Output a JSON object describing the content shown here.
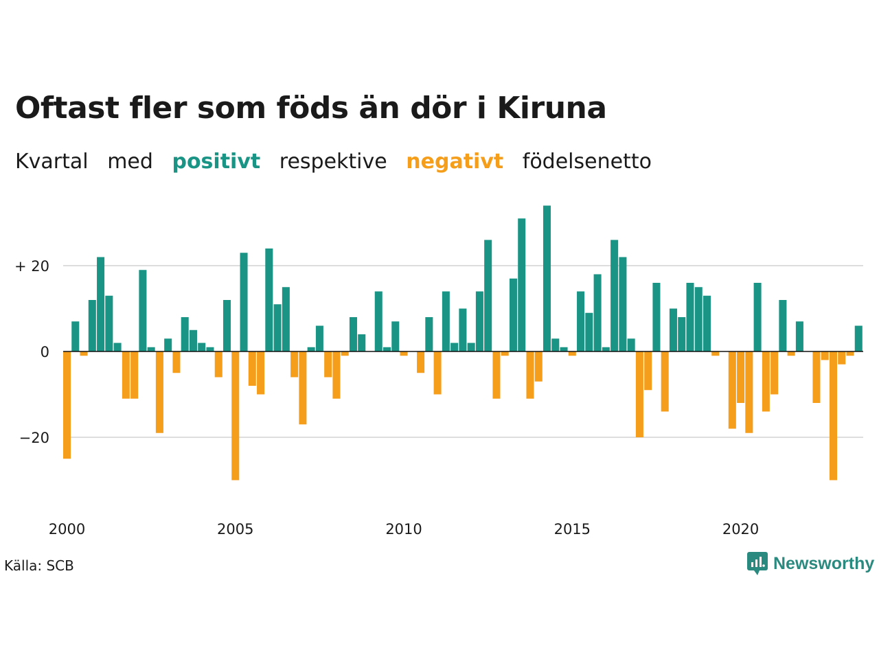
{
  "title": "Oftast fler som föds än dör i Kiruna",
  "subtitle": {
    "w1": "Kvartal",
    "w2": "med",
    "positive": "positivt",
    "w3": "respektive",
    "negative": "negativt",
    "w4": "födelsenetto"
  },
  "source": "Källa: SCB",
  "brand": "Newsworthy",
  "colors": {
    "positive": "#1a9485",
    "negative": "#f59e1c",
    "text": "#1a1a1a",
    "grid": "#dddddd",
    "brand": "#2b8a7f"
  },
  "chart_data": {
    "type": "bar",
    "title": "Oftast fler som föds än dör i Kiruna",
    "xlabel": "",
    "ylabel": "",
    "ylim": [
      -35,
      35
    ],
    "grid": true,
    "yticks": [
      {
        "value": 20,
        "label": "+ 20"
      },
      {
        "value": 0,
        "label": "0"
      },
      {
        "value": -20,
        "label": "−20"
      }
    ],
    "xticks": [
      "2000",
      "2005",
      "2010",
      "2015",
      "2020"
    ],
    "start_year": 2000,
    "values": [
      -25,
      7,
      -1,
      12,
      22,
      13,
      2,
      -11,
      -11,
      19,
      1,
      -19,
      3,
      -5,
      8,
      5,
      2,
      1,
      -6,
      12,
      -30,
      23,
      -8,
      -10,
      24,
      11,
      15,
      -6,
      -17,
      1,
      6,
      -6,
      -11,
      -1,
      8,
      4,
      0,
      14,
      1,
      7,
      -1,
      0,
      -5,
      8,
      -10,
      14,
      2,
      10,
      2,
      14,
      26,
      -11,
      -1,
      17,
      31,
      -11,
      -7,
      34,
      3,
      1,
      -1,
      14,
      9,
      18,
      1,
      26,
      22,
      3,
      -20,
      -9,
      16,
      -14,
      10,
      8,
      16,
      15,
      13,
      -1,
      0,
      -18,
      -12,
      -19,
      16,
      -14,
      -10,
      12,
      -1,
      7,
      0,
      -12,
      -2,
      -30,
      -3,
      -1,
      6
    ]
  }
}
